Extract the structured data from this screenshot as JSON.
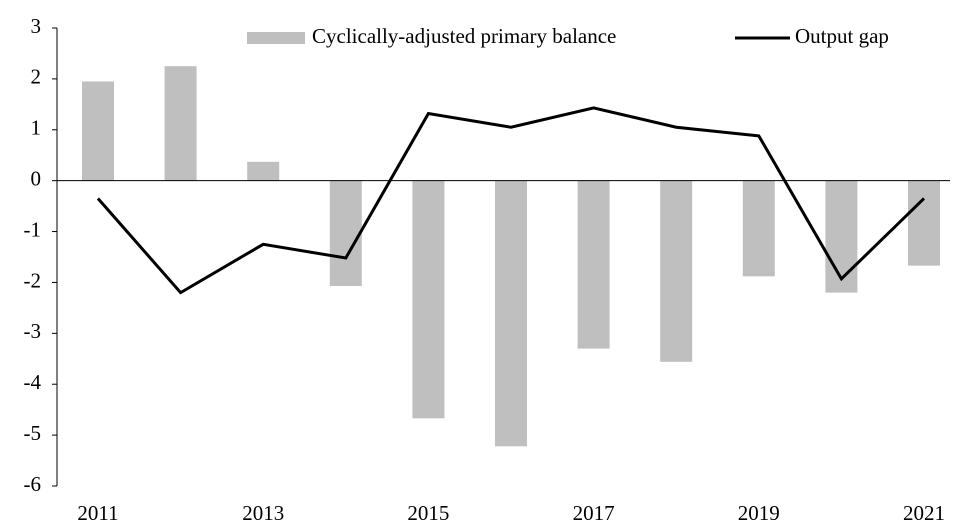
{
  "chart_data": {
    "type": "bar",
    "categories": [
      "2011",
      null,
      "2013",
      null,
      "2015",
      null,
      "2017",
      null,
      "2019",
      null,
      "2021"
    ],
    "series": [
      {
        "name": "Cyclically-adjusted primary balance",
        "type": "bar",
        "color": "#bfbfbf",
        "values": [
          1.95,
          2.25,
          0.37,
          -2.07,
          -4.67,
          -5.22,
          -3.3,
          -3.56,
          -1.88,
          -2.2,
          -1.67
        ]
      },
      {
        "name": "Output gap",
        "type": "line",
        "color": "#000000",
        "values": [
          -0.35,
          -2.2,
          -1.25,
          -1.52,
          1.32,
          1.05,
          1.43,
          1.05,
          0.88,
          -1.93,
          -0.35
        ]
      }
    ],
    "ylim": [
      -6,
      3
    ],
    "yticks": [
      -6,
      -5,
      -4,
      -3,
      -2,
      -1,
      0,
      1,
      2,
      3
    ],
    "legend": "top"
  }
}
